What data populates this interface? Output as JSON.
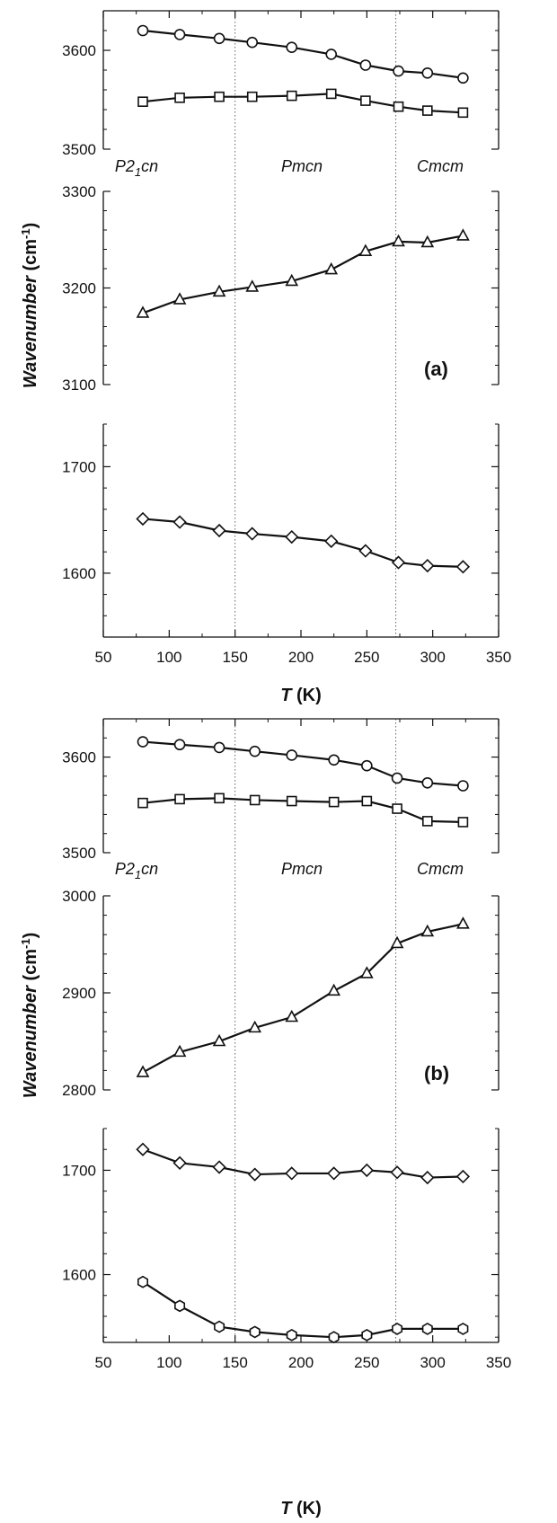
{
  "chart_data": [
    {
      "type": "line",
      "panel_label": "(a)",
      "xlabel": "T (K)",
      "xlabel_italic_part": "T",
      "xlabel_unit_part": " (K)",
      "ylabel": "Wavenumber (cm-1)",
      "ylabel_main": "Wavenumber",
      "ylabel_unit_open": " (cm",
      "ylabel_unit_sup": "-1",
      "ylabel_unit_close": ")",
      "xlim": [
        50,
        350
      ],
      "xticks": [
        "50",
        "100",
        "150",
        "200",
        "250",
        "300",
        "350"
      ],
      "phase_boundaries": [
        150,
        272
      ],
      "phase_labels": [
        {
          "name": "P2",
          "sub": "1",
          "suffix": "cn"
        },
        {
          "name": "Pmcn",
          "sub": "",
          "suffix": ""
        },
        {
          "name": "Cmcm",
          "sub": "",
          "suffix": ""
        }
      ],
      "subplots": [
        {
          "ylim": [
            3500,
            3640
          ],
          "yticks": [
            "3500",
            "3600"
          ],
          "series": [
            {
              "marker": "circle",
              "x": [
                80,
                108,
                138,
                163,
                193,
                223,
                249,
                274,
                296,
                323
              ],
              "values": [
                3620,
                3616,
                3612,
                3608,
                3603,
                3596,
                3585,
                3579,
                3577,
                3572
              ]
            },
            {
              "marker": "square",
              "x": [
                80,
                108,
                138,
                163,
                193,
                223,
                249,
                274,
                296,
                323
              ],
              "values": [
                3548,
                3552,
                3553,
                3553,
                3554,
                3556,
                3549,
                3543,
                3539,
                3537
              ]
            }
          ]
        },
        {
          "ylim": [
            3100,
            3300
          ],
          "yticks": [
            "3100",
            "3200",
            "3300"
          ],
          "series": [
            {
              "marker": "triangle",
              "x": [
                80,
                108,
                138,
                163,
                193,
                223,
                249,
                274,
                296,
                323
              ],
              "values": [
                3174,
                3188,
                3196,
                3201,
                3207,
                3219,
                3238,
                3248,
                3247,
                3254
              ]
            }
          ]
        },
        {
          "ylim": [
            1540,
            1740
          ],
          "yticks": [
            "1600",
            "1700"
          ],
          "series": [
            {
              "marker": "diamond",
              "x": [
                80,
                108,
                138,
                163,
                193,
                223,
                249,
                274,
                296,
                323
              ],
              "values": [
                1651,
                1648,
                1640,
                1637,
                1634,
                1630,
                1621,
                1610,
                1607,
                1606
              ]
            }
          ]
        }
      ]
    },
    {
      "type": "line",
      "panel_label": "(b)",
      "xlabel": "T (K)",
      "xlabel_italic_part": "T",
      "xlabel_unit_part": " (K)",
      "ylabel": "Wavenumber (cm-1)",
      "ylabel_main": "Wavenumber",
      "ylabel_unit_open": " (cm",
      "ylabel_unit_sup": "-1",
      "ylabel_unit_close": ")",
      "xlim": [
        50,
        350
      ],
      "xticks": [
        "50",
        "100",
        "150",
        "200",
        "250",
        "300",
        "350"
      ],
      "phase_boundaries": [
        150,
        272
      ],
      "phase_labels": [
        {
          "name": "P2",
          "sub": "1",
          "suffix": "cn"
        },
        {
          "name": "Pmcn",
          "sub": "",
          "suffix": ""
        },
        {
          "name": "Cmcm",
          "sub": "",
          "suffix": ""
        }
      ],
      "subplots": [
        {
          "ylim": [
            3500,
            3640
          ],
          "yticks": [
            "3500",
            "3600"
          ],
          "series": [
            {
              "marker": "circle",
              "x": [
                80,
                108,
                138,
                165,
                193,
                225,
                250,
                273,
                296,
                323
              ],
              "values": [
                3616,
                3613,
                3610,
                3606,
                3602,
                3597,
                3591,
                3578,
                3573,
                3570
              ]
            },
            {
              "marker": "square",
              "x": [
                80,
                108,
                138,
                165,
                193,
                225,
                250,
                273,
                296,
                323
              ],
              "values": [
                3552,
                3556,
                3557,
                3555,
                3554,
                3553,
                3554,
                3546,
                3533,
                3532
              ]
            }
          ]
        },
        {
          "ylim": [
            2800,
            3000
          ],
          "yticks": [
            "2800",
            "2900",
            "3000"
          ],
          "series": [
            {
              "marker": "triangle",
              "x": [
                80,
                108,
                138,
                165,
                193,
                225,
                250,
                273,
                296,
                323
              ],
              "values": [
                2818,
                2839,
                2850,
                2864,
                2875,
                2902,
                2920,
                2951,
                2963,
                2971
              ]
            }
          ]
        },
        {
          "ylim": [
            1535,
            1740
          ],
          "yticks": [
            "1600",
            "1700"
          ],
          "series": [
            {
              "marker": "diamond",
              "x": [
                80,
                108,
                138,
                165,
                193,
                225,
                250,
                273,
                296,
                323
              ],
              "values": [
                1720,
                1707,
                1703,
                1696,
                1697,
                1697,
                1700,
                1698,
                1693,
                1694
              ]
            },
            {
              "marker": "hexagon",
              "x": [
                80,
                108,
                138,
                165,
                193,
                225,
                250,
                273,
                296,
                323
              ],
              "values": [
                1593,
                1570,
                1550,
                1545,
                1542,
                1540,
                1542,
                1548,
                1548,
                1548
              ]
            }
          ]
        }
      ]
    }
  ]
}
